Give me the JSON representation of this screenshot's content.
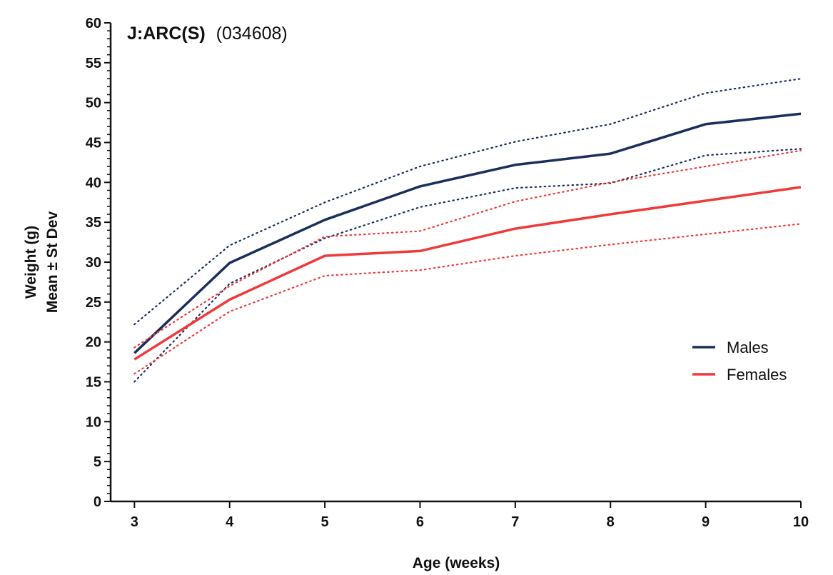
{
  "chart_data": {
    "type": "line",
    "title_bold": "J:ARC(S)",
    "title_normal": "(034608)",
    "xlabel": "Age (weeks)",
    "ylabel_line1": "Weight (g)",
    "ylabel_line2": "Mean ± St Dev",
    "x": [
      3,
      4,
      5,
      6,
      7,
      8,
      9,
      10
    ],
    "xlim": [
      2.75,
      10
    ],
    "ylim": [
      0,
      60
    ],
    "ytick_step": 5,
    "yminor_step": 1,
    "grid": false,
    "legend_position": "right",
    "series": [
      {
        "name": "Males",
        "color": "#1b2f5c",
        "mean": [
          18.6,
          29.9,
          35.3,
          39.5,
          42.2,
          43.6,
          47.3,
          48.6
        ],
        "upper": [
          22.2,
          32.1,
          37.5,
          42.0,
          45.1,
          47.3,
          51.2,
          53.0
        ],
        "lower": [
          15.0,
          27.3,
          33.0,
          36.9,
          39.3,
          39.9,
          43.4,
          44.2
        ]
      },
      {
        "name": "Females",
        "color": "#f03a3a",
        "mean": [
          17.8,
          25.3,
          30.8,
          31.4,
          34.2,
          36.0,
          37.7,
          39.4
        ],
        "upper": [
          19.3,
          27.0,
          33.2,
          33.9,
          37.6,
          40.0,
          42.0,
          44.0
        ],
        "lower": [
          16.0,
          23.8,
          28.3,
          29.0,
          30.8,
          32.2,
          33.5,
          34.8
        ]
      }
    ]
  }
}
